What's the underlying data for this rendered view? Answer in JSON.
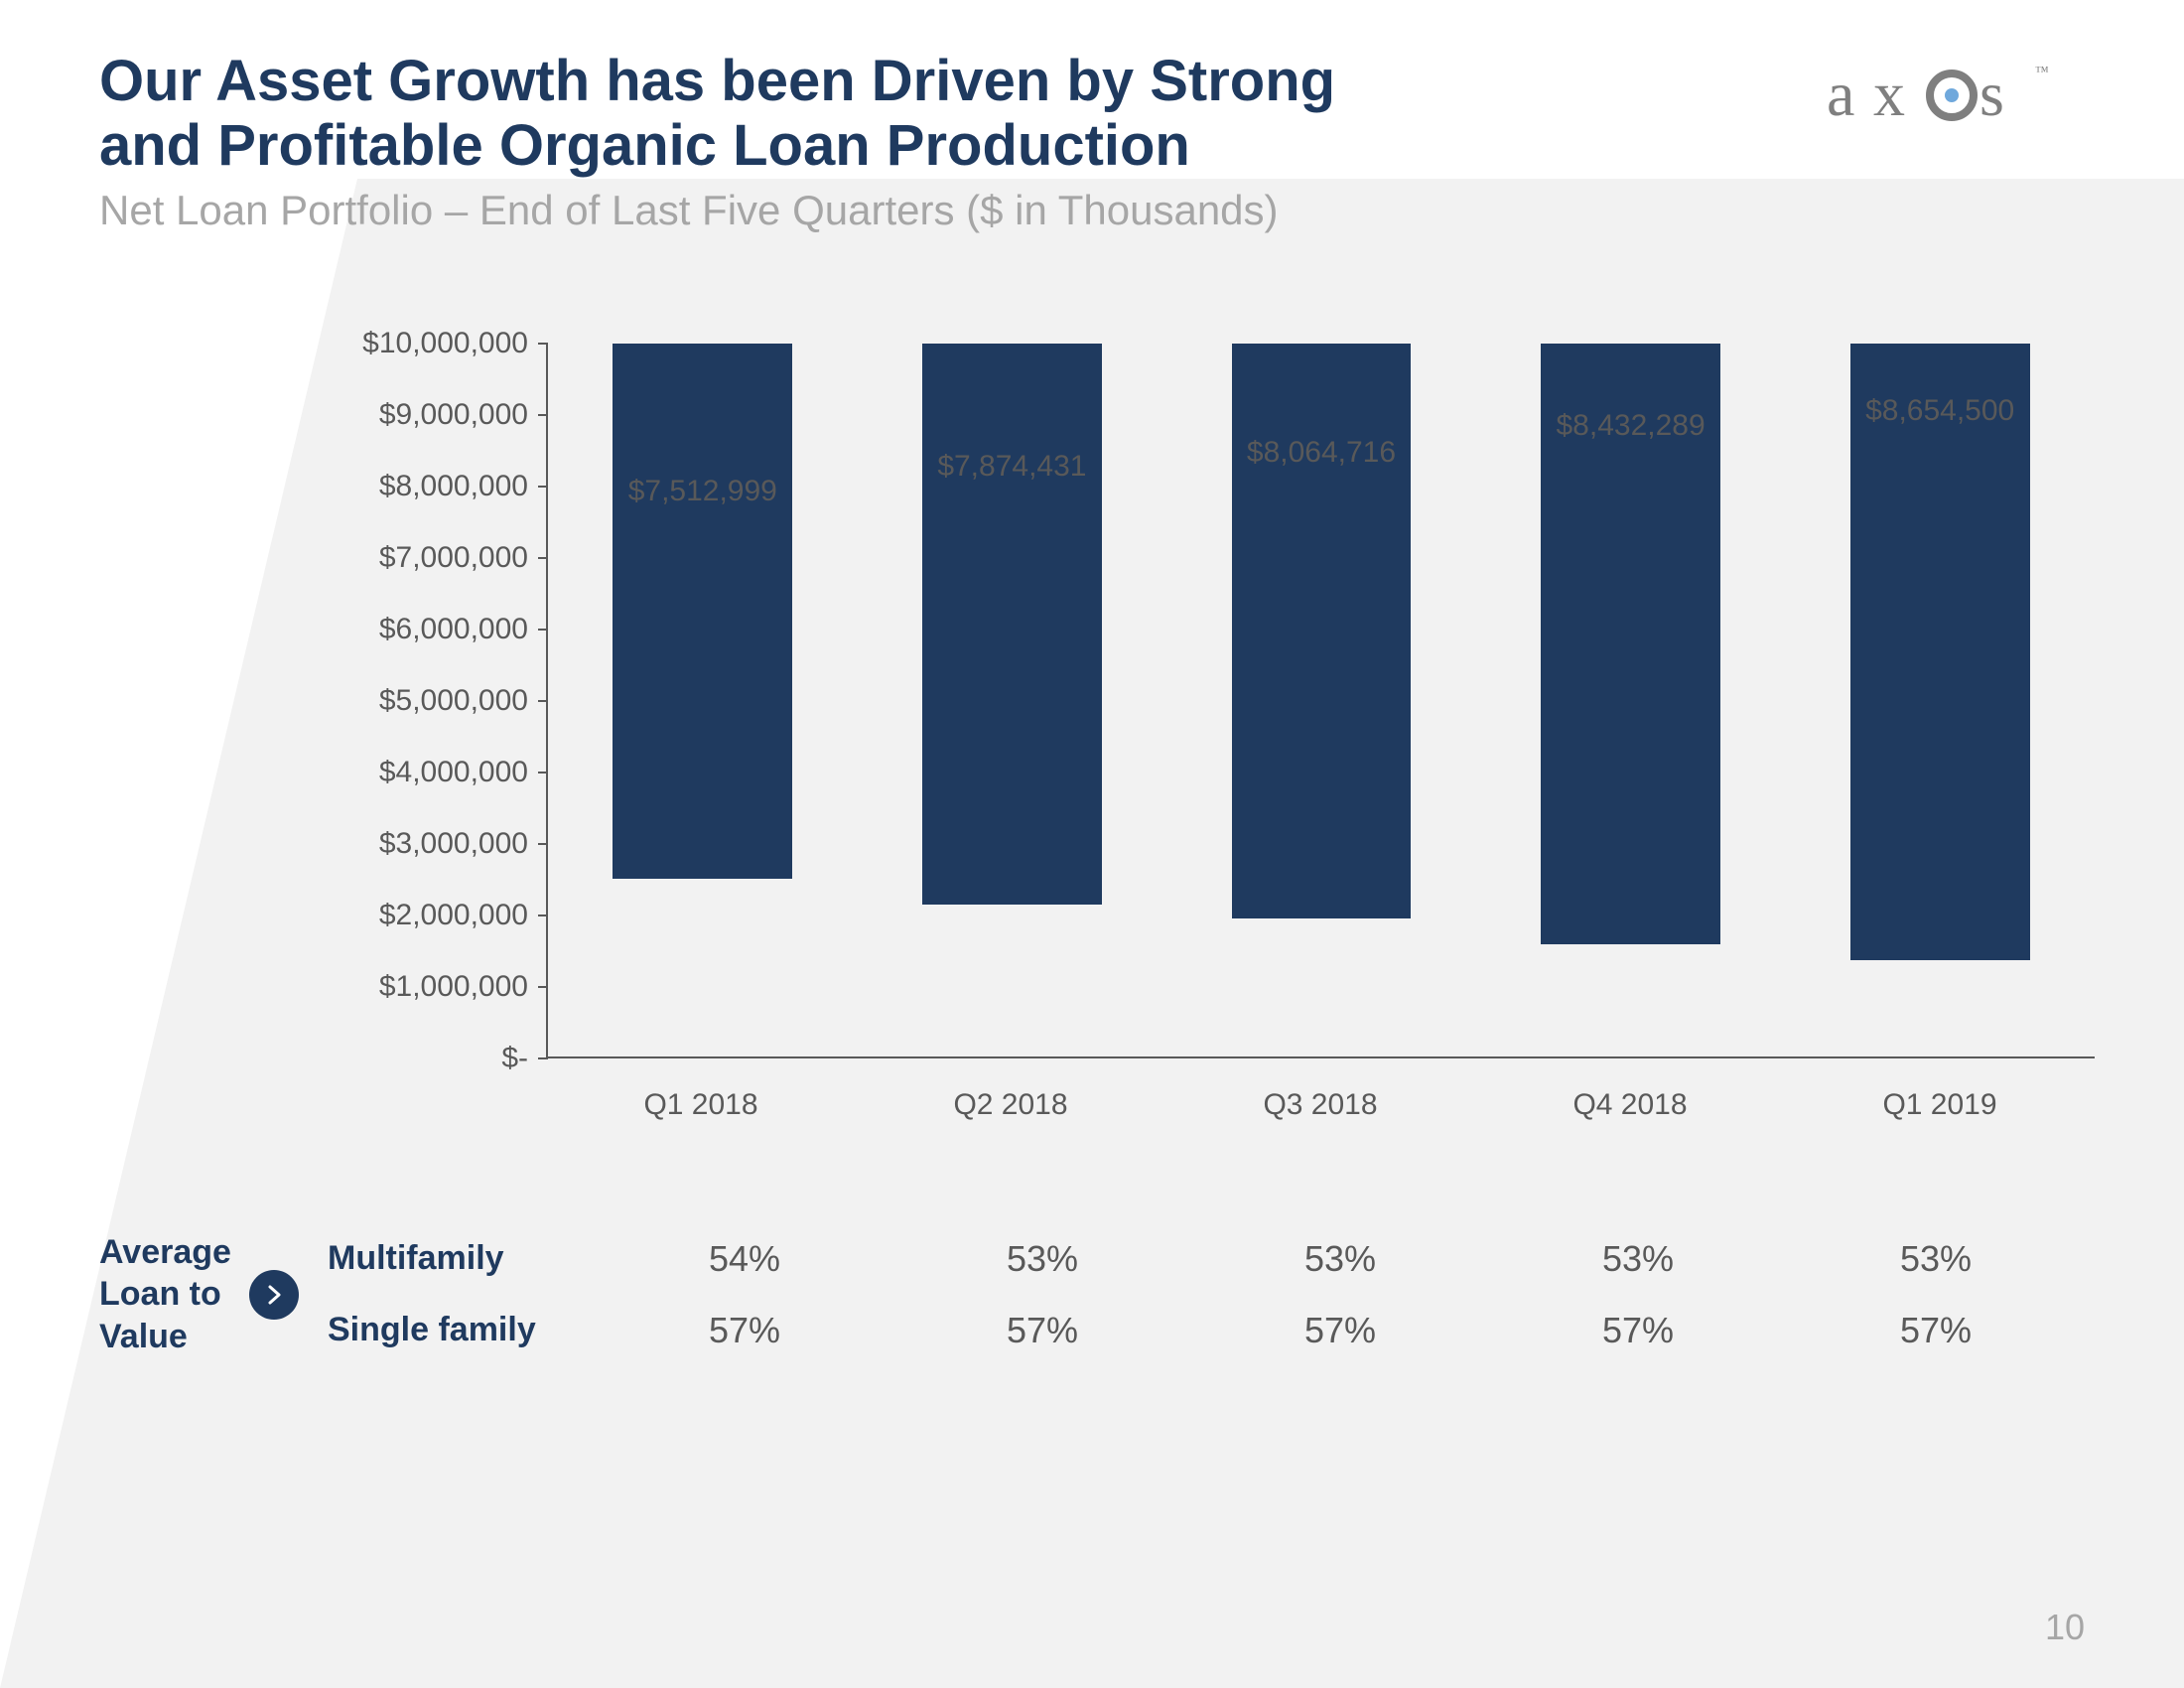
{
  "title_line1": "Our Asset Growth has been Driven by Strong",
  "title_line2": "and Profitable Organic Loan Production",
  "subtitle": "Net Loan Portfolio – End of Last Five Quarters ($ in Thousands)",
  "logo_text": "axos",
  "logo_color": "#7f7f7f",
  "logo_dot_color": "#6fa8dc",
  "page_number": "10",
  "chart": {
    "type": "bar",
    "bar_color": "#1f3a5f",
    "axis_color": "#595959",
    "label_color": "#595959",
    "label_fontsize": 30,
    "ylim": [
      0,
      10000000
    ],
    "y_ticks": [
      {
        "v": 0,
        "label": "$-"
      },
      {
        "v": 1000000,
        "label": "$1,000,000"
      },
      {
        "v": 2000000,
        "label": "$2,000,000"
      },
      {
        "v": 3000000,
        "label": "$3,000,000"
      },
      {
        "v": 4000000,
        "label": "$4,000,000"
      },
      {
        "v": 5000000,
        "label": "$5,000,000"
      },
      {
        "v": 6000000,
        "label": "$6,000,000"
      },
      {
        "v": 7000000,
        "label": "$7,000,000"
      },
      {
        "v": 8000000,
        "label": "$8,000,000"
      },
      {
        "v": 9000000,
        "label": "$9,000,000"
      },
      {
        "v": 10000000,
        "label": "$10,000,000"
      }
    ],
    "categories": [
      "Q1 2018",
      "Q2 2018",
      "Q3 2018",
      "Q4 2018",
      "Q1 2019"
    ],
    "values": [
      7512999,
      7874431,
      8064716,
      8432289,
      8654500
    ],
    "value_labels": [
      "$7,512,999",
      "$7,874,431",
      "$8,064,716",
      "$8,432,289",
      "$8,654,500"
    ],
    "bar_width_pct": 58
  },
  "ltv": {
    "heading_line1": "Average",
    "heading_line2": "Loan to",
    "heading_line3": "Value",
    "heading_color": "#1f3a5f",
    "icon_bg": "#1f3a5f",
    "value_color": "#595959",
    "rows": [
      {
        "label": "Multifamily",
        "cells": [
          "54%",
          "53%",
          "53%",
          "53%",
          "53%"
        ]
      },
      {
        "label": "Single family",
        "cells": [
          "57%",
          "57%",
          "57%",
          "57%",
          "57%"
        ]
      }
    ]
  }
}
